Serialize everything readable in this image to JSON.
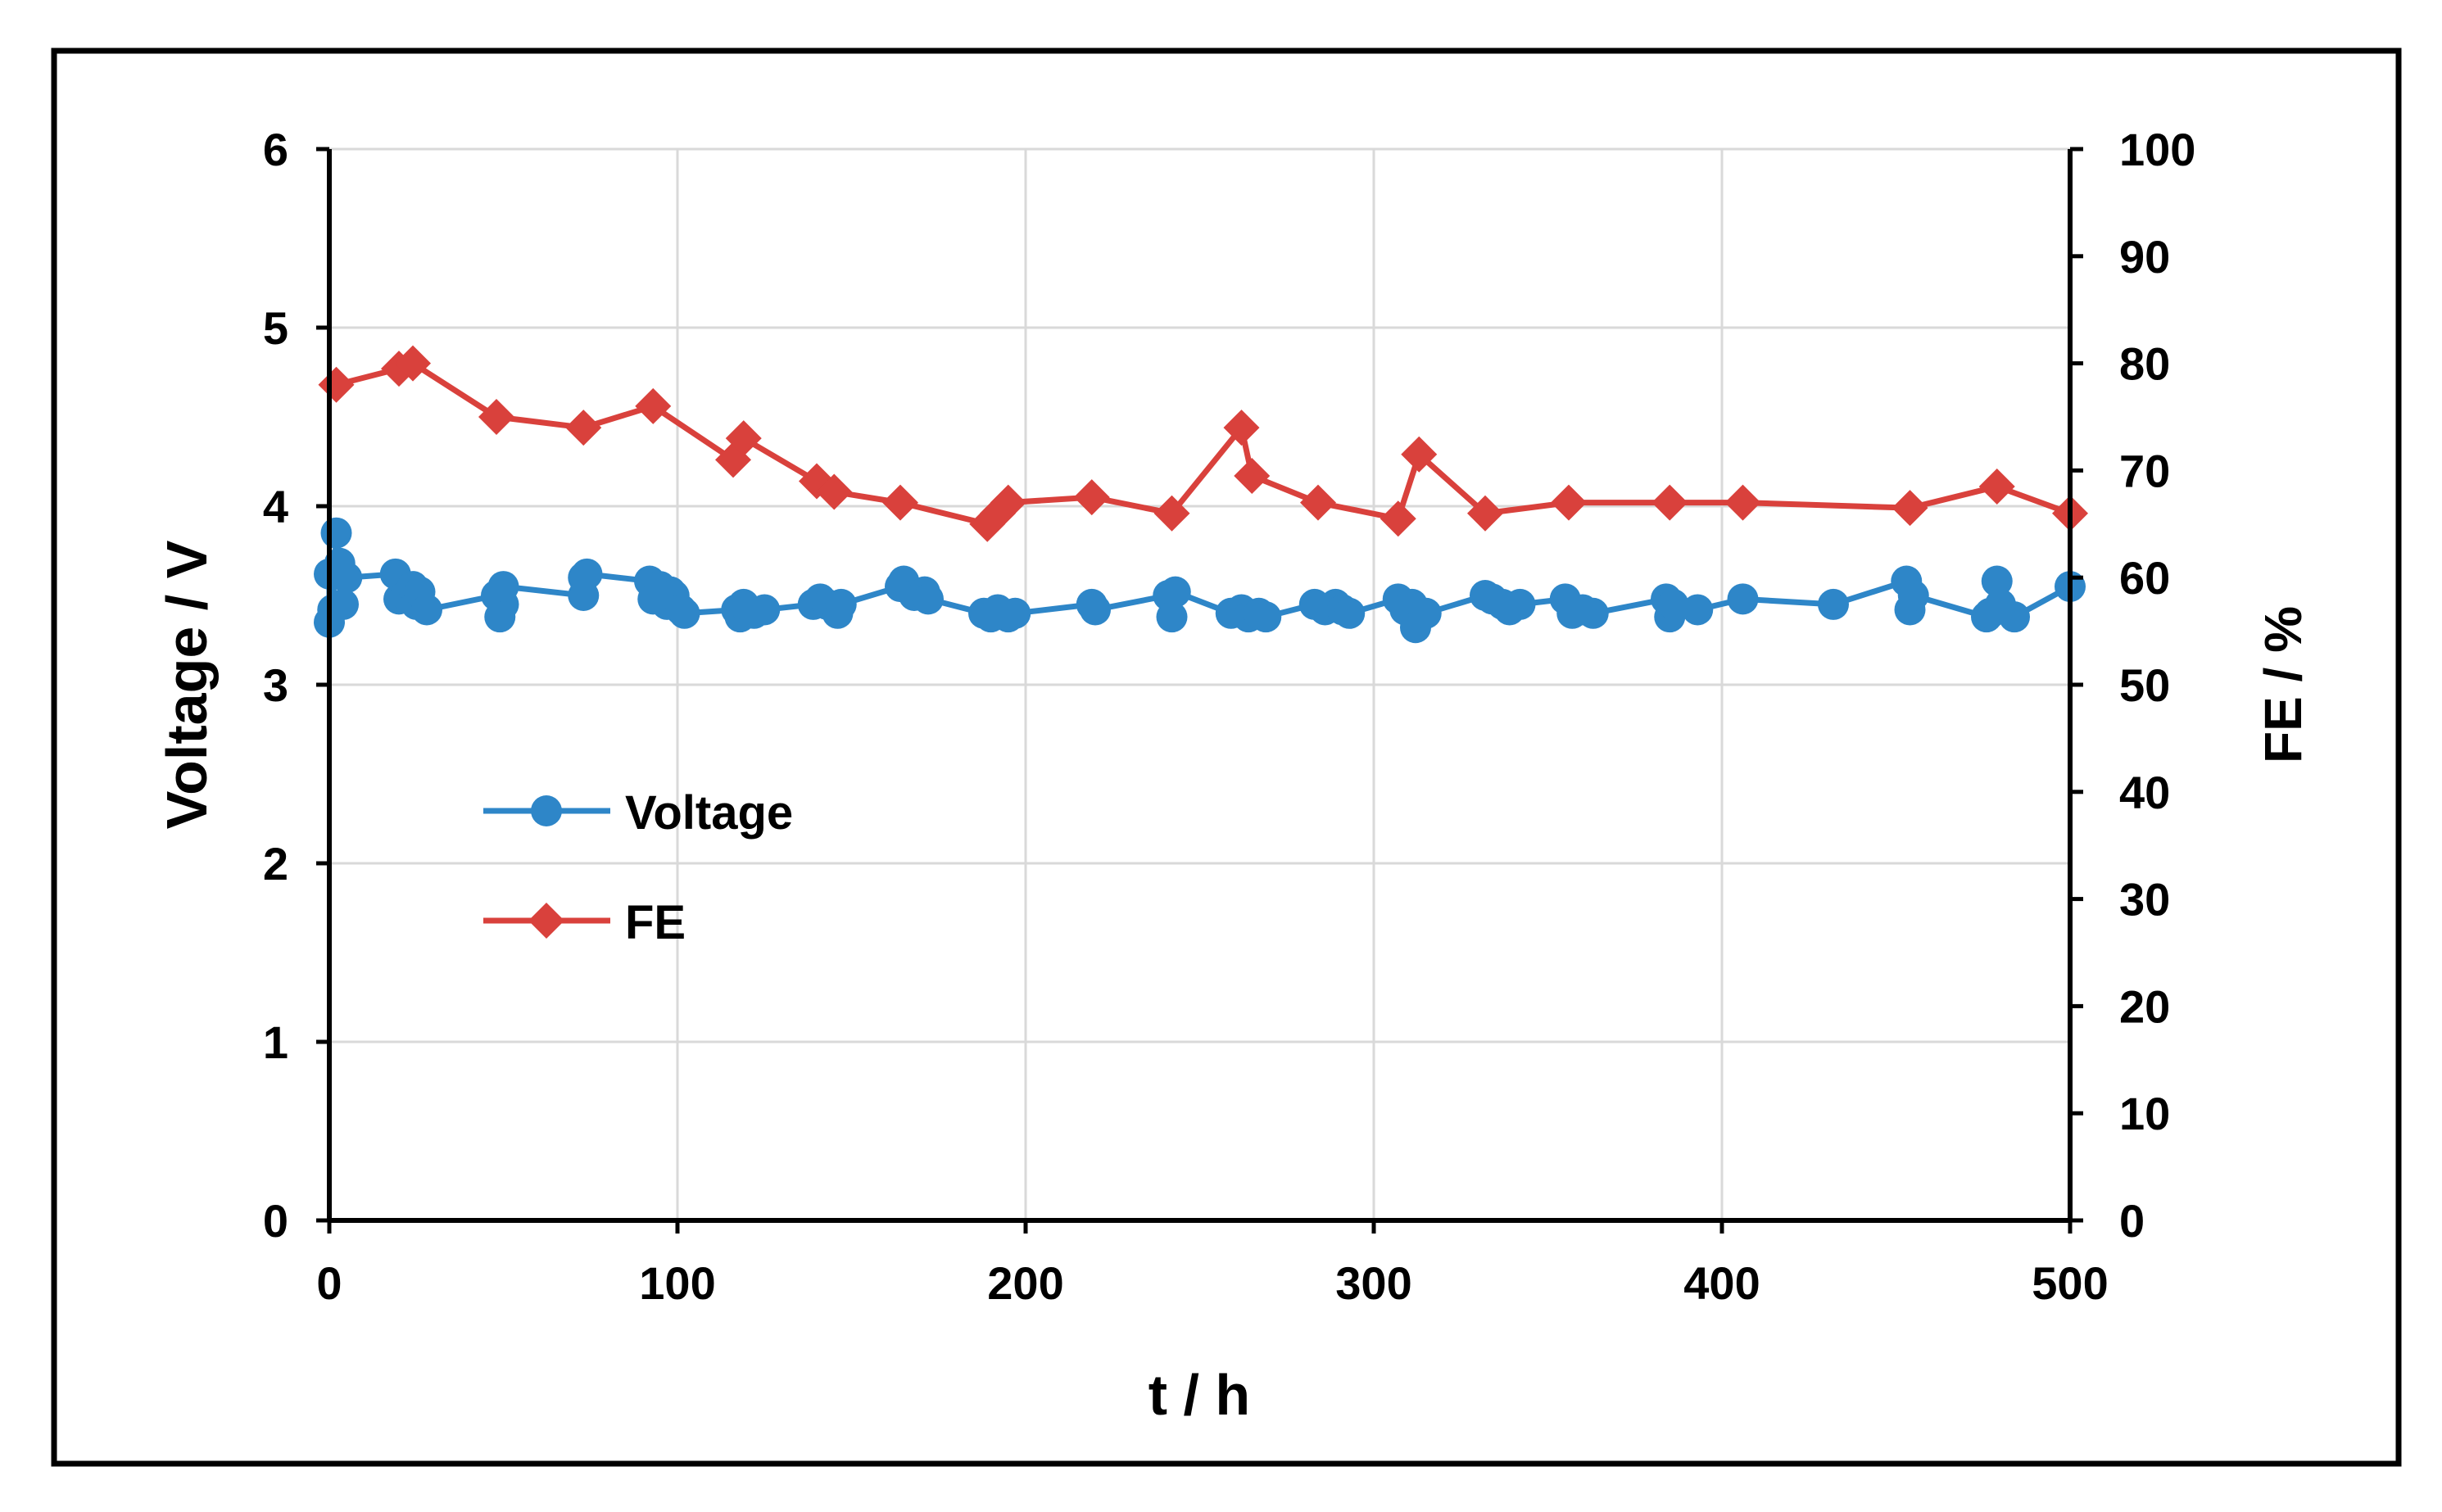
{
  "chart_data": {
    "type": "line",
    "title": "",
    "xlabel": "t / h",
    "ylabel": "Voltage / V",
    "y2label": "FE / %",
    "xlim": [
      0,
      500
    ],
    "ylim": [
      0,
      6
    ],
    "y2lim": [
      0,
      100
    ],
    "x_ticks": [
      "0",
      "100",
      "200",
      "300",
      "400",
      "500"
    ],
    "y_ticks": [
      "0",
      "1",
      "2",
      "3",
      "4",
      "5",
      "6"
    ],
    "y2_ticks": [
      "0",
      "10",
      "20",
      "30",
      "40",
      "50",
      "60",
      "70",
      "80",
      "90",
      "100"
    ],
    "grid": true,
    "legend_placement": "center-left",
    "series": [
      {
        "name": "Voltage",
        "axis": "left",
        "color": "#2e86c8",
        "marker": "circle",
        "x": [
          0,
          0,
          1,
          2,
          3,
          4,
          5,
          19,
          20,
          22,
          24,
          25,
          26,
          28,
          48,
          49,
          50,
          50,
          73,
          73,
          74,
          92,
          93,
          95,
          97,
          98,
          99,
          101,
          102,
          117,
          118,
          119,
          122,
          125,
          139,
          141,
          143,
          146,
          147,
          164,
          165,
          168,
          171,
          172,
          188,
          190,
          192,
          195,
          197,
          219,
          220,
          241,
          242,
          243,
          259,
          262,
          264,
          267,
          269,
          283,
          286,
          289,
          291,
          293,
          307,
          309,
          311,
          312,
          315,
          332,
          334,
          337,
          339,
          342,
          355,
          357,
          360,
          363,
          384,
          385,
          386,
          393,
          406,
          432,
          453,
          454,
          455,
          476,
          477,
          479,
          480,
          484,
          500
        ],
        "values": [
          3.62,
          3.35,
          3.42,
          3.85,
          3.68,
          3.45,
          3.6,
          3.62,
          3.48,
          3.5,
          3.55,
          3.45,
          3.52,
          3.42,
          3.5,
          3.38,
          3.45,
          3.55,
          3.5,
          3.6,
          3.62,
          3.58,
          3.48,
          3.55,
          3.45,
          3.52,
          3.5,
          3.42,
          3.4,
          3.42,
          3.38,
          3.45,
          3.4,
          3.42,
          3.45,
          3.48,
          3.45,
          3.4,
          3.45,
          3.55,
          3.58,
          3.5,
          3.52,
          3.48,
          3.4,
          3.38,
          3.42,
          3.38,
          3.4,
          3.45,
          3.42,
          3.5,
          3.38,
          3.52,
          3.4,
          3.42,
          3.38,
          3.4,
          3.38,
          3.45,
          3.42,
          3.45,
          3.42,
          3.4,
          3.48,
          3.42,
          3.45,
          3.32,
          3.4,
          3.5,
          3.48,
          3.45,
          3.42,
          3.45,
          3.48,
          3.4,
          3.42,
          3.4,
          3.48,
          3.38,
          3.45,
          3.42,
          3.48,
          3.45,
          3.58,
          3.42,
          3.5,
          3.38,
          3.4,
          3.58,
          3.45,
          3.38,
          3.55
        ]
      },
      {
        "name": "FE",
        "axis": "right",
        "color": "#d9413c",
        "marker": "diamond",
        "x": [
          2,
          20,
          24,
          48,
          73,
          93,
          116,
          119,
          140,
          145,
          164,
          189,
          192,
          195,
          219,
          242,
          262,
          265,
          284,
          307,
          313,
          332,
          356,
          385,
          406,
          454,
          479,
          500
        ],
        "values": [
          78,
          79.5,
          80,
          75,
          74,
          76,
          71,
          73,
          69,
          68,
          67,
          65,
          66,
          67,
          67.5,
          66,
          74,
          69.5,
          67,
          65.5,
          71.5,
          66,
          67,
          67,
          67,
          66.5,
          68.5,
          66
        ]
      }
    ]
  }
}
